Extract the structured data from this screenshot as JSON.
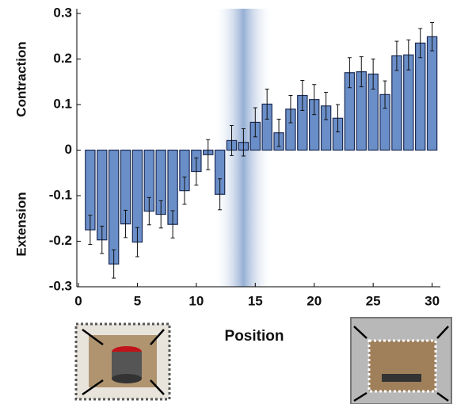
{
  "chart_data": {
    "type": "bar",
    "xlabel": "Position",
    "ylabel_top": "Contraction",
    "ylabel_bottom": "Extension",
    "x": [
      1,
      2,
      3,
      4,
      5,
      6,
      7,
      8,
      9,
      10,
      11,
      12,
      13,
      14,
      15,
      16,
      17,
      18,
      19,
      20,
      21,
      22,
      23,
      24,
      25,
      26,
      27,
      28,
      29,
      30
    ],
    "values": [
      -0.175,
      -0.197,
      -0.25,
      -0.162,
      -0.202,
      -0.134,
      -0.141,
      -0.163,
      -0.089,
      -0.047,
      -0.01,
      -0.097,
      0.021,
      0.017,
      0.061,
      0.101,
      0.038,
      0.09,
      0.12,
      0.111,
      0.097,
      0.07,
      0.17,
      0.172,
      0.167,
      0.122,
      0.207,
      0.209,
      0.235,
      0.249
    ],
    "errors": [
      0.032,
      0.03,
      0.031,
      0.03,
      0.032,
      0.03,
      0.03,
      0.03,
      0.03,
      0.03,
      0.033,
      0.034,
      0.033,
      0.03,
      0.032,
      0.033,
      0.03,
      0.03,
      0.033,
      0.033,
      0.03,
      0.03,
      0.033,
      0.033,
      0.033,
      0.03,
      0.032,
      0.033,
      0.032,
      0.031
    ],
    "color": "#6a8ec8",
    "edge_color": "#1c2b55",
    "highlight_range": [
      11.5,
      16.5
    ],
    "highlight_color": "#8aa6d0",
    "xlim": [
      0,
      30.7
    ],
    "xticks": [
      0,
      5,
      10,
      15,
      20,
      25,
      30
    ],
    "ylim": [
      -0.3,
      0.3
    ],
    "yticks": [
      0.3,
      0.2,
      0.1,
      0,
      -0.1,
      -0.2,
      -0.3
    ]
  }
}
